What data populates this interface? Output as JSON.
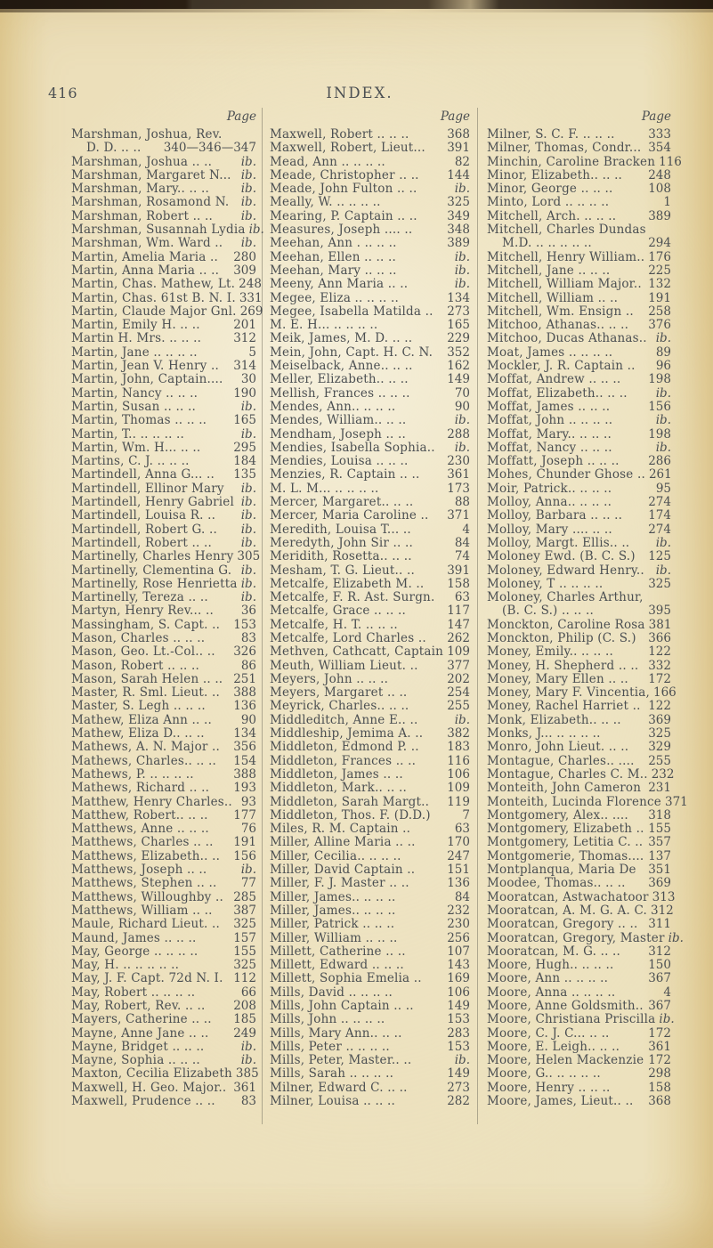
{
  "page": {
    "number": "416",
    "title": "INDEX.",
    "column_header": "Page"
  },
  "columns": [
    {
      "entries": [
        {
          "t": "Marshman, Joshua,  Rev.",
          "p": ""
        },
        {
          "t": "D. D. .. ..",
          "p": "340—346—347",
          "i": 1
        },
        {
          "t": "Marshman, Joshua .. ..",
          "p": "ib."
        },
        {
          "t": "Marshman, Margaret N...",
          "p": "ib."
        },
        {
          "t": "Marshman, Mary.. .. ..",
          "p": "ib."
        },
        {
          "t": "Marshman, Rosamond N.",
          "p": "ib."
        },
        {
          "t": "Marshman, Robert .. ..",
          "p": "ib."
        },
        {
          "t": "Marshman, Susannah Lydia",
          "p": "ib."
        },
        {
          "t": "Marshman, Wm. Ward ..",
          "p": "ib."
        },
        {
          "t": "Martin, Amelia Maria ..",
          "p": "280"
        },
        {
          "t": "Martin, Anna Maria .. ..",
          "p": "309"
        },
        {
          "t": "Martin, Chas. Mathew, Lt.",
          "p": "248"
        },
        {
          "t": "Martin, Chas. 61st B. N. I.",
          "p": "331"
        },
        {
          "t": "Martin, Claude Major Gnl.",
          "p": "269"
        },
        {
          "t": "Martin, Emily H. .. ..",
          "p": "201"
        },
        {
          "t": "Martin H. Mrs. .. .. ..",
          "p": "312"
        },
        {
          "t": "Martin, Jane .. .. .. ..",
          "p": "5"
        },
        {
          "t": "Martin, Jean V. Henry ..",
          "p": "314"
        },
        {
          "t": "Martin, John, Captain....",
          "p": "30"
        },
        {
          "t": "Martin, Nancy .. .. ..",
          "p": "190"
        },
        {
          "t": "Martin, Susan .. .. ..",
          "p": "ib."
        },
        {
          "t": "Martin, Thomas .. .. ..",
          "p": "165"
        },
        {
          "t": "Martin, T.. .. .. .. ..",
          "p": "ib."
        },
        {
          "t": "Martin, Wm. H... .. ..",
          "p": "295"
        },
        {
          "t": "Martins, C. J. .. .. ..",
          "p": "184"
        },
        {
          "t": "Martindell, Anna G... ..",
          "p": "135"
        },
        {
          "t": "Martindell, Ellinor Mary",
          "p": "ib."
        },
        {
          "t": "Martindell, Henry Gabriel",
          "p": "ib."
        },
        {
          "t": "Martindell, Louisa R. ..",
          "p": "ib."
        },
        {
          "t": "Martindell, Robert G. ..",
          "p": "ib."
        },
        {
          "t": "Martindell, Robert .. ..",
          "p": "ib."
        },
        {
          "t": "Martinelly, Charles Henry",
          "p": "305"
        },
        {
          "t": "Martinelly, Clementina G.",
          "p": "ib."
        },
        {
          "t": "Martinelly, Rose Henrietta",
          "p": "ib."
        },
        {
          "t": "Martinelly, Tereza .. ..",
          "p": "ib."
        },
        {
          "t": "Martyn, Henry Rev... ..",
          "p": "36"
        },
        {
          "t": "Massingham, S. Capt. ..",
          "p": "153"
        },
        {
          "t": "Mason, Charles .. .. ..",
          "p": "83"
        },
        {
          "t": "Mason, Geo. Lt.-Col.. ..",
          "p": "326"
        },
        {
          "t": "Mason, Robert .. .. ..",
          "p": "86"
        },
        {
          "t": "Mason, Sarah Helen .. ..",
          "p": "251"
        },
        {
          "t": "Master, R. Sml. Lieut. ..",
          "p": "388"
        },
        {
          "t": "Master, S. Legh .. .. ..",
          "p": "136"
        },
        {
          "t": "Mathew, Eliza Ann .. ..",
          "p": "90"
        },
        {
          "t": "Mathew, Eliza D.. .. ..",
          "p": "134"
        },
        {
          "t": "Mathews, A. N. Major ..",
          "p": "356"
        },
        {
          "t": "Mathews, Charles.. .. ..",
          "p": "154"
        },
        {
          "t": "Mathews, P. .. .. .. ..",
          "p": "388"
        },
        {
          "t": "Mathews, Richard .. ..",
          "p": "193"
        },
        {
          "t": "Matthew, Henry Charles..",
          "p": "93"
        },
        {
          "t": "Matthew, Robert.. .. ..",
          "p": "177"
        },
        {
          "t": "Matthews, Anne .. .. ..",
          "p": "76"
        },
        {
          "t": "Matthews, Charles .. ..",
          "p": "191"
        },
        {
          "t": "Matthews, Elizabeth.. ..",
          "p": "156"
        },
        {
          "t": "Matthews, Joseph .. ..",
          "p": "ib."
        },
        {
          "t": "Matthews, Stephen .. ..",
          "p": "77"
        },
        {
          "t": "Matthews, Willoughby ..",
          "p": "285"
        },
        {
          "t": "Matthews, William .. ..",
          "p": "387"
        },
        {
          "t": "Maule, Richard Lieut. ..",
          "p": "325"
        },
        {
          "t": "Maund, James .. .. ..",
          "p": "157"
        },
        {
          "t": "May, George .. .. .. ..",
          "p": "155"
        },
        {
          "t": "May, H. .. .. .. .. ..",
          "p": "325"
        },
        {
          "t": "May, J. F. Capt. 72d N. I.",
          "p": "112"
        },
        {
          "t": "May, Robert .. .. .. ..",
          "p": "66"
        },
        {
          "t": "May, Robert, Rev. .. ..",
          "p": "208"
        },
        {
          "t": "Mayers, Catherine .. ..",
          "p": "185"
        },
        {
          "t": "Mayne, Anne Jane .. ..",
          "p": "249"
        },
        {
          "t": "Mayne, Bridget .. .. ..",
          "p": "ib."
        },
        {
          "t": "Mayne, Sophia .. .. ..",
          "p": "ib."
        },
        {
          "t": "Maxton, Cecilia Elizabeth",
          "p": "385"
        },
        {
          "t": "Maxwell, H. Geo. Major..",
          "p": "361"
        },
        {
          "t": "Maxwell, Prudence .. ..",
          "p": "83"
        }
      ]
    },
    {
      "entries": [
        {
          "t": "Maxwell, Robert .. .. ..",
          "p": "368"
        },
        {
          "t": "Maxwell, Robert, Lieut...",
          "p": "391"
        },
        {
          "t": "Mead, Ann .. .. .. ..",
          "p": "82"
        },
        {
          "t": "Meade, Christopher .. ..",
          "p": "144"
        },
        {
          "t": "Meade, John Fulton .. ..",
          "p": "ib."
        },
        {
          "t": "Meally, W. .. .. .. ..",
          "p": "325"
        },
        {
          "t": "Mearing, P. Captain .. ..",
          "p": "349"
        },
        {
          "t": "Measures, Joseph .... ..",
          "p": "348"
        },
        {
          "t": "Meehan, Ann . .. .. ..",
          "p": "389"
        },
        {
          "t": "Meehan, Ellen .. .. ..",
          "p": "ib."
        },
        {
          "t": "Meehan, Mary .. .. ..",
          "p": "ib."
        },
        {
          "t": "Meeny, Ann Maria .. ..",
          "p": "ib."
        },
        {
          "t": "Megee, Eliza .. .. .. ..",
          "p": "134"
        },
        {
          "t": "Megee, Isabella Matilda ..",
          "p": "273"
        },
        {
          "t": "M. E. H... .. .. .. ..",
          "p": "165"
        },
        {
          "t": "Meik, James, M. D. .. ..",
          "p": "229"
        },
        {
          "t": "Mein, John, Capt. H. C. N.",
          "p": "352"
        },
        {
          "t": "Meiselback, Anne.. .. ..",
          "p": "162"
        },
        {
          "t": "Meller, Elizabeth.. .. ..",
          "p": "149"
        },
        {
          "t": "Mellish, Frances .. .. ..",
          "p": "70"
        },
        {
          "t": "Mendes, Ann.. .. .. ..",
          "p": "90"
        },
        {
          "t": "Mendes, William.. .. ..",
          "p": "ib."
        },
        {
          "t": "Mendham, Joseph .. ..",
          "p": "288"
        },
        {
          "t": "Mendies, Isabella Sophia..",
          "p": "ib."
        },
        {
          "t": "Mendies, Louisa .. .. ..",
          "p": "230"
        },
        {
          "t": "Menzies, R. Captain .. ..",
          "p": "361"
        },
        {
          "t": "M. L. M... .. .. .. ..",
          "p": "173"
        },
        {
          "t": "Mercer, Margaret.. .. ..",
          "p": "88"
        },
        {
          "t": "Mercer, Maria Caroline ..",
          "p": "371"
        },
        {
          "t": "Meredith, Louisa T... ..",
          "p": "4"
        },
        {
          "t": "Meredyth, John Sir .. ..",
          "p": "84"
        },
        {
          "t": "Meridith, Rosetta.. .. ..",
          "p": "74"
        },
        {
          "t": "Mesham, T. G. Lieut.. ..",
          "p": "391"
        },
        {
          "t": "Metcalfe, Elizabeth M. ..",
          "p": "158"
        },
        {
          "t": "Metcalfe, F. R. Ast. Surgn.",
          "p": "63"
        },
        {
          "t": "Metcalfe, Grace .. .. ..",
          "p": "117"
        },
        {
          "t": "Metcalfe, H. T. .. .. ..",
          "p": "147"
        },
        {
          "t": "Metcalfe, Lord Charles ..",
          "p": "262"
        },
        {
          "t": "Methven, Cathcatt, Captain",
          "p": "109"
        },
        {
          "t": "Meuth, William Lieut. ..",
          "p": "377"
        },
        {
          "t": "Meyers, John .. .. ..",
          "p": "202"
        },
        {
          "t": "Meyers, Margaret .. ..",
          "p": "254"
        },
        {
          "t": "Meyrick, Charles.. .. ..",
          "p": "255"
        },
        {
          "t": "Middleditch, Anne E.. ..",
          "p": "ib."
        },
        {
          "t": "Middleship, Jemima A. ..",
          "p": "382"
        },
        {
          "t": "Middleton, Edmond P. ..",
          "p": "183"
        },
        {
          "t": "Middleton, Frances .. ..",
          "p": "116"
        },
        {
          "t": "Middleton, James .. ..",
          "p": "106"
        },
        {
          "t": "Middleton, Mark.. .. ..",
          "p": "109"
        },
        {
          "t": "Middleton, Sarah Margt..",
          "p": "119"
        },
        {
          "t": "Middleton, Thos. F. (D.D.)",
          "p": "7"
        },
        {
          "t": "Miles, R. M. Captain ..",
          "p": "63"
        },
        {
          "t": "Miller, Alline Maria .. ..",
          "p": "170"
        },
        {
          "t": "Miller, Cecilia.. .. .. ..",
          "p": "247"
        },
        {
          "t": "Miller, David Captain ..",
          "p": "151"
        },
        {
          "t": "Miller, F. J. Master .. ..",
          "p": "136"
        },
        {
          "t": "Miller, James.. .. .. ..",
          "p": "84"
        },
        {
          "t": "Miller, James.. .. .. ..",
          "p": "232"
        },
        {
          "t": "Miller, Patrick .. .. ..",
          "p": "230"
        },
        {
          "t": "Miller, William .. .. ..",
          "p": "256"
        },
        {
          "t": "Millett, Catherine .. ..",
          "p": "107"
        },
        {
          "t": "Millett, Edward .. .. ..",
          "p": "143"
        },
        {
          "t": "Millett, Sophia Emelia ..",
          "p": "169"
        },
        {
          "t": "Mills, David .. .. .. ..",
          "p": "106"
        },
        {
          "t": "Mills, John Captain .. ..",
          "p": "149"
        },
        {
          "t": "Mills, John .. .. .. ..",
          "p": "153"
        },
        {
          "t": "Mills, Mary Ann.. .. ..",
          "p": "283"
        },
        {
          "t": "Mills, Peter .. .. .. ..",
          "p": "153"
        },
        {
          "t": "Mills, Peter, Master.. ..",
          "p": "ib."
        },
        {
          "t": "Mills, Sarah .. .. .. ..",
          "p": "149"
        },
        {
          "t": "Milner, Edward C. .. ..",
          "p": "273"
        },
        {
          "t": "Milner, Louisa .. .. ..",
          "p": "282"
        }
      ]
    },
    {
      "entries": [
        {
          "t": "Milner, S. C. F. .. .. ..",
          "p": "333"
        },
        {
          "t": "Milner, Thomas, Condr...",
          "p": "354"
        },
        {
          "t": "Minchin, Caroline Bracken",
          "p": "116"
        },
        {
          "t": "Minor, Elizabeth.. .. ..",
          "p": "248"
        },
        {
          "t": "Minor, George .. .. ..",
          "p": "108"
        },
        {
          "t": "Minto, Lord .. .. .. ..",
          "p": "1"
        },
        {
          "t": "Mitchell, Arch. .. .. ..",
          "p": "389"
        },
        {
          "t": "Mitchell,  Charles  Dundas",
          "p": ""
        },
        {
          "t": "M.D. .. .. .. .. ..",
          "p": "294",
          "i": 1
        },
        {
          "t": "Mitchell, Henry William..",
          "p": "176"
        },
        {
          "t": "Mitchell, Jane .. .. ..",
          "p": "225"
        },
        {
          "t": "Mitchell, William Major..",
          "p": "132"
        },
        {
          "t": "Mitchell, William .. ..",
          "p": "191"
        },
        {
          "t": "Mitchell, Wm. Ensign ..",
          "p": "258"
        },
        {
          "t": "Mitchoo, Athanas.. .. ..",
          "p": "376"
        },
        {
          "t": "Mitchoo, Ducas Athanas..",
          "p": "ib."
        },
        {
          "t": "Moat, James .. .. .. ..",
          "p": "89"
        },
        {
          "t": "Mockler, J. R. Captain ..",
          "p": "96"
        },
        {
          "t": "Moffat, Andrew .. .. ..",
          "p": "198"
        },
        {
          "t": "Moffat, Elizabeth.. .. ..",
          "p": "ib."
        },
        {
          "t": "Moffat, James .. .. ..",
          "p": "156"
        },
        {
          "t": "Moffat, John .. .. .. ..",
          "p": "ib."
        },
        {
          "t": "Moffat, Mary.. .. .. ..",
          "p": "198"
        },
        {
          "t": "Moffat, Nancy .. .. ..",
          "p": "ib."
        },
        {
          "t": "Moffatt, Joseph .. .. ..",
          "p": "286"
        },
        {
          "t": "Mohes, Chunder Ghose ..",
          "p": "261"
        },
        {
          "t": "Moir, Patrick.. .. .. ..",
          "p": "95"
        },
        {
          "t": "Molloy, Anna.. .. .. ..",
          "p": "274"
        },
        {
          "t": "Molloy, Barbara .. .. ..",
          "p": "174"
        },
        {
          "t": "Molloy, Mary .... .. ..",
          "p": "274"
        },
        {
          "t": "Molloy, Margt. Ellis.. ..",
          "p": "ib."
        },
        {
          "t": "Moloney Ewd. (B. C. S.)",
          "p": "125"
        },
        {
          "t": "Moloney, Edward Henry..",
          "p": "ib."
        },
        {
          "t": "Moloney, T .. .. .. ..",
          "p": "325"
        },
        {
          "t": "Moloney,  Charles  Arthur,",
          "p": ""
        },
        {
          "t": "(B. C. S.) .. .. ..",
          "p": "395",
          "i": 1
        },
        {
          "t": "Monckton, Caroline Rosa",
          "p": "381"
        },
        {
          "t": "Monckton, Philip (C. S.)",
          "p": "366"
        },
        {
          "t": "Money, Emily.. .. .. ..",
          "p": "122"
        },
        {
          "t": "Money, H. Shepherd .. ..",
          "p": "332"
        },
        {
          "t": "Money, Mary Ellen .. ..",
          "p": "172"
        },
        {
          "t": "Money, Mary F. Vincentia,",
          "p": "166"
        },
        {
          "t": "Money, Rachel Harriet ..",
          "p": "122"
        },
        {
          "t": "Monk, Elizabeth.. .. ..",
          "p": "369"
        },
        {
          "t": "Monks, J... .. .. .. ..",
          "p": "325"
        },
        {
          "t": "Monro, John Lieut. .. ..",
          "p": "329"
        },
        {
          "t": "Montague, Charles.. ....",
          "p": "255"
        },
        {
          "t": "Montague, Charles C. M..",
          "p": "232"
        },
        {
          "t": "Monteith, John Cameron",
          "p": "231"
        },
        {
          "t": "Monteith, Lucinda Florence",
          "p": "371"
        },
        {
          "t": "Montgomery, Alex.. ....",
          "p": "318"
        },
        {
          "t": "Montgomery, Elizabeth ..",
          "p": "155"
        },
        {
          "t": "Montgomery, Letitia C. ..",
          "p": "357"
        },
        {
          "t": "Montgomerie, Thomas....",
          "p": "137"
        },
        {
          "t": "Montplanqua, Maria De",
          "p": "351"
        },
        {
          "t": "Moodee, Thomas.. .. ..",
          "p": "369"
        },
        {
          "t": "Mooratcan, Astwachatoor",
          "p": "313"
        },
        {
          "t": "Mooratcan, A. M. G. A. C.",
          "p": "312"
        },
        {
          "t": "Mooratcan, Gregory .. ..",
          "p": "311"
        },
        {
          "t": "Mooratcan, Gregory, Master",
          "p": "ib."
        },
        {
          "t": "Mooratcan, M. G. .. ..",
          "p": "312"
        },
        {
          "t": "Moore, Hugh.. .. .. ..",
          "p": "150"
        },
        {
          "t": "Moore, Ann .. .. .. ..",
          "p": "367"
        },
        {
          "t": "Moore, Anna .. .. .. ..",
          "p": "4"
        },
        {
          "t": "Moore, Anne Goldsmith..",
          "p": "367"
        },
        {
          "t": "Moore, Christiana Priscilla",
          "p": "ib."
        },
        {
          "t": "Moore, C. J. C... .. ..",
          "p": "172"
        },
        {
          "t": "Moore, E. Leigh.. .. ..",
          "p": "361"
        },
        {
          "t": "Moore, Helen Mackenzie",
          "p": "172"
        },
        {
          "t": "Moore, G.. .. .. .. ..",
          "p": "298"
        },
        {
          "t": "Moore, Henry .. .. ..",
          "p": "158"
        },
        {
          "t": "Moore, James, Lieut.. ..",
          "p": "368"
        }
      ]
    }
  ]
}
